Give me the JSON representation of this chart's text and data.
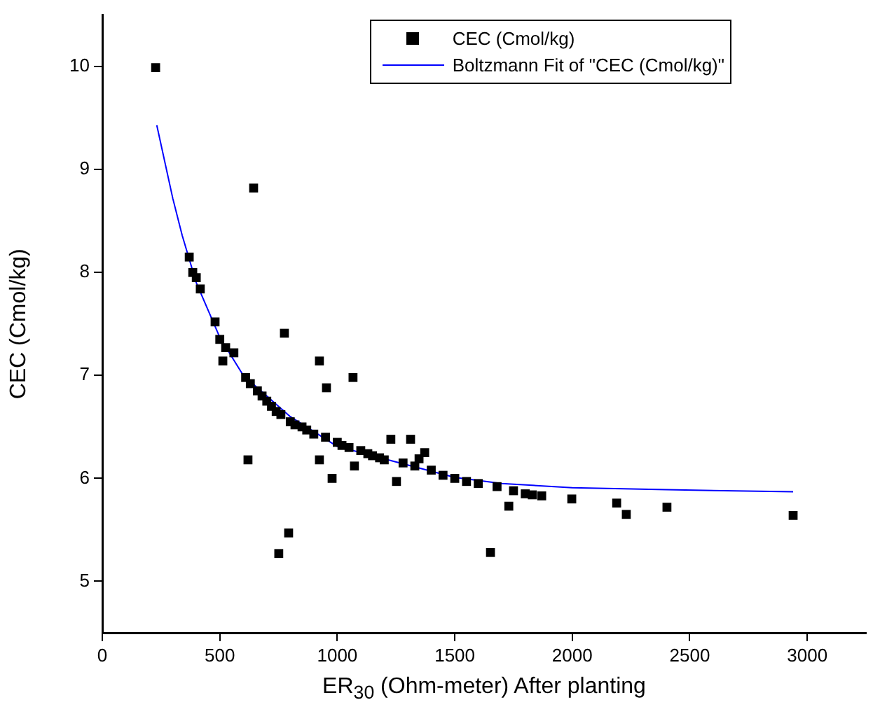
{
  "chart_data": {
    "type": "scatter",
    "xlabel": "ER$_{30}$ (Ohm-meter) After planting",
    "ylabel": "CEC (Cmol/kg)",
    "xlim": [
      0,
      3250
    ],
    "xticks": [
      0,
      500,
      1000,
      1500,
      2000,
      2500,
      3000
    ],
    "ylim": [
      4.5,
      10.5
    ],
    "yticks": [
      5,
      6,
      7,
      8,
      9,
      10
    ],
    "legend": "top right",
    "marker": "square",
    "grid": false,
    "series": [
      {
        "name": "CEC (Cmol/kg)",
        "color": "#000000",
        "x": [
          227,
          370,
          385,
          400,
          417,
          480,
          500,
          513,
          525,
          560,
          610,
          620,
          630,
          644,
          660,
          680,
          700,
          720,
          740,
          751,
          760,
          775,
          793,
          800,
          820,
          850,
          870,
          900,
          924,
          924,
          950,
          954,
          978,
          1000,
          1020,
          1050,
          1067,
          1073,
          1100,
          1130,
          1150,
          1180,
          1200,
          1228,
          1252,
          1280,
          1312,
          1330,
          1348,
          1372,
          1400,
          1450,
          1500,
          1550,
          1600,
          1652,
          1680,
          1730,
          1750,
          1800,
          1830,
          1870,
          1998,
          2189,
          2230,
          2403,
          2940
        ],
        "values": [
          9.99,
          8.15,
          8.0,
          7.95,
          7.84,
          7.52,
          7.35,
          7.14,
          7.27,
          7.22,
          6.98,
          6.18,
          6.92,
          8.82,
          6.85,
          6.8,
          6.75,
          6.7,
          6.65,
          5.27,
          6.62,
          7.41,
          5.47,
          6.55,
          6.52,
          6.5,
          6.47,
          6.43,
          7.14,
          6.18,
          6.4,
          6.88,
          6.0,
          6.35,
          6.32,
          6.3,
          6.98,
          6.12,
          6.27,
          6.24,
          6.22,
          6.2,
          6.18,
          6.38,
          5.97,
          6.15,
          6.38,
          6.12,
          6.19,
          6.25,
          6.08,
          6.03,
          6.0,
          5.97,
          5.95,
          5.28,
          5.92,
          5.73,
          5.88,
          5.85,
          5.84,
          5.83,
          5.8,
          5.76,
          5.65,
          5.72,
          5.64
        ]
      },
      {
        "name": "Boltzmann Fit of \"CEC (Cmol/kg)\"",
        "color": "#0000ff",
        "type": "line",
        "marker": "none",
        "line_style": "solid",
        "x": [
          232,
          300,
          340,
          400,
          500,
          600,
          700,
          800,
          1000,
          1200,
          1500,
          1700,
          2000,
          2400,
          2940
        ],
        "values": [
          9.43,
          8.72,
          8.36,
          7.9,
          7.37,
          7.0,
          6.8,
          6.6,
          6.31,
          6.19,
          6.01,
          5.95,
          5.91,
          5.89,
          5.87
        ]
      }
    ]
  }
}
